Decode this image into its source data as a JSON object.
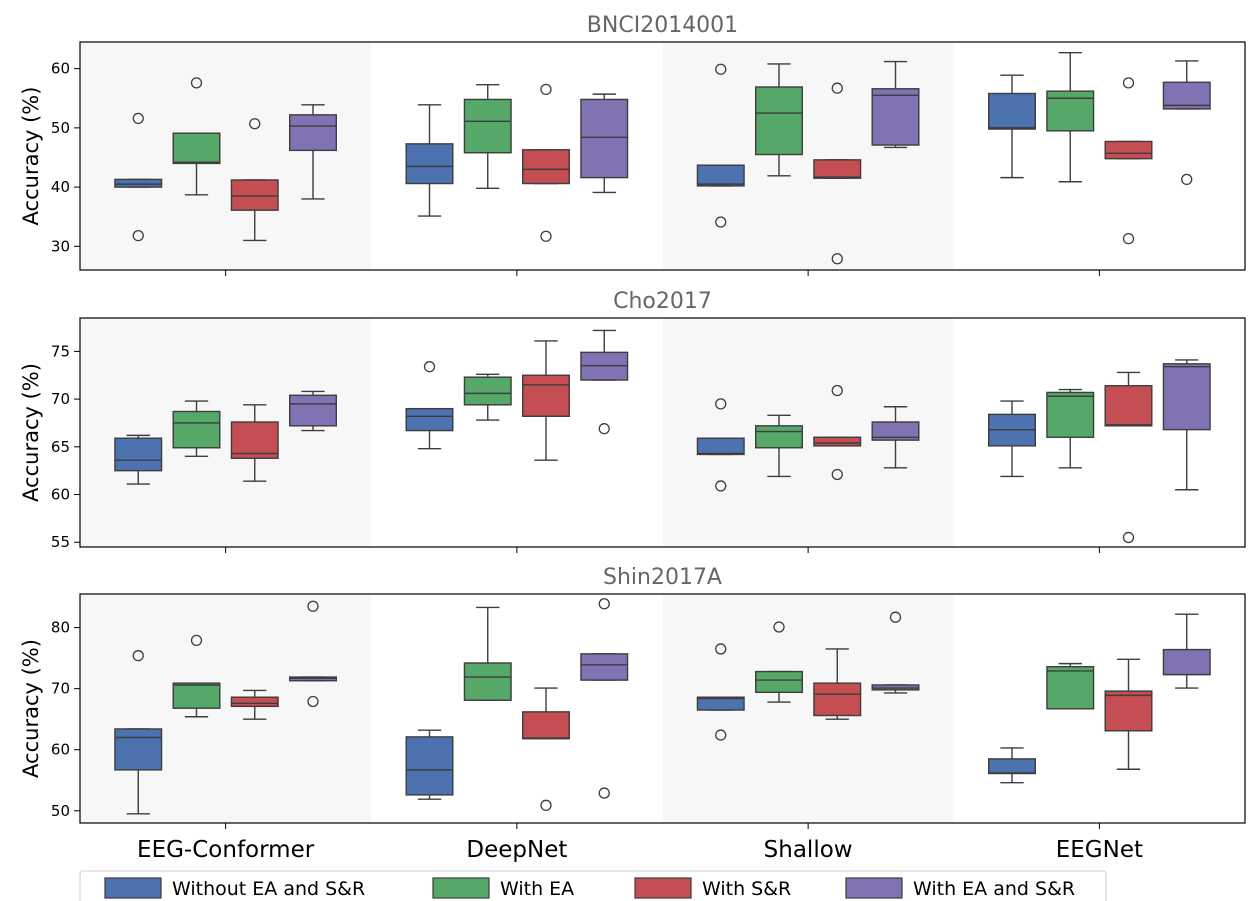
{
  "chart_data": {
    "type": "box",
    "groups": [
      "EEG-Conformer",
      "DeepNet",
      "Shallow",
      "EEGNet"
    ],
    "series": [
      {
        "name": "Without EA and S&R",
        "color": "#4c72b0"
      },
      {
        "name": "With EA",
        "color": "#55a868"
      },
      {
        "name": "With S&R",
        "color": "#c44e52"
      },
      {
        "name": "With EA and S&R",
        "color": "#8172b3"
      }
    ],
    "ylabel": "Accuracy (%)",
    "panels": [
      {
        "title": "BNCI2014001",
        "ylim": [
          26,
          64.5
        ],
        "yticks": [
          30,
          40,
          50,
          60
        ],
        "boxes": [
          [
            {
              "whislo": 40.0,
              "q1": 40.0,
              "med": 40.5,
              "q3": 41.3,
              "whishi": 41.3,
              "fliers": [
                51.6,
                31.8
              ]
            },
            {
              "whislo": 38.7,
              "q1": 44.0,
              "med": 44.2,
              "q3": 49.1,
              "whishi": 49.1,
              "fliers": [
                57.6
              ]
            },
            {
              "whislo": 31.0,
              "q1": 36.1,
              "med": 38.5,
              "q3": 41.2,
              "whishi": 41.2,
              "fliers": [
                50.7
              ]
            },
            {
              "whislo": 38.0,
              "q1": 46.2,
              "med": 50.3,
              "q3": 52.2,
              "whishi": 53.9,
              "fliers": []
            }
          ],
          [
            {
              "whislo": 35.1,
              "q1": 40.6,
              "med": 43.5,
              "q3": 47.3,
              "whishi": 53.9,
              "fliers": []
            },
            {
              "whislo": 39.8,
              "q1": 45.8,
              "med": 51.1,
              "q3": 54.8,
              "whishi": 57.3,
              "fliers": []
            },
            {
              "whislo": 40.6,
              "q1": 40.6,
              "med": 43.0,
              "q3": 46.3,
              "whishi": 46.3,
              "fliers": [
                56.5,
                31.7
              ]
            },
            {
              "whislo": 39.1,
              "q1": 41.6,
              "med": 48.4,
              "q3": 54.8,
              "whishi": 55.7,
              "fliers": []
            }
          ],
          [
            {
              "whislo": 40.2,
              "q1": 40.2,
              "med": 40.5,
              "q3": 43.7,
              "whishi": 43.7,
              "fliers": [
                59.9,
                34.1
              ]
            },
            {
              "whislo": 41.9,
              "q1": 45.5,
              "med": 52.5,
              "q3": 56.9,
              "whishi": 60.8,
              "fliers": []
            },
            {
              "whislo": 41.5,
              "q1": 41.5,
              "med": 41.7,
              "q3": 44.6,
              "whishi": 44.6,
              "fliers": [
                56.7,
                27.9
              ]
            },
            {
              "whislo": 46.7,
              "q1": 47.1,
              "med": 55.5,
              "q3": 56.6,
              "whishi": 61.2,
              "fliers": []
            }
          ],
          [
            {
              "whislo": 41.6,
              "q1": 49.8,
              "med": 50.0,
              "q3": 55.8,
              "whishi": 58.9,
              "fliers": []
            },
            {
              "whislo": 40.9,
              "q1": 49.5,
              "med": 55.0,
              "q3": 56.2,
              "whishi": 62.7,
              "fliers": []
            },
            {
              "whislo": 44.8,
              "q1": 44.8,
              "med": 45.7,
              "q3": 47.7,
              "whishi": 47.7,
              "fliers": [
                57.6,
                31.3
              ]
            },
            {
              "whislo": 53.2,
              "q1": 53.2,
              "med": 53.8,
              "q3": 57.7,
              "whishi": 61.3,
              "fliers": [
                41.3
              ]
            }
          ]
        ]
      },
      {
        "title": "Cho2017",
        "ylim": [
          54.5,
          78.5
        ],
        "yticks": [
          55,
          60,
          65,
          70,
          75
        ],
        "boxes": [
          [
            {
              "whislo": 61.1,
              "q1": 62.5,
              "med": 63.6,
              "q3": 65.9,
              "whishi": 66.2,
              "fliers": []
            },
            {
              "whislo": 64.0,
              "q1": 64.9,
              "med": 67.5,
              "q3": 68.7,
              "whishi": 69.8,
              "fliers": []
            },
            {
              "whislo": 61.4,
              "q1": 63.8,
              "med": 64.3,
              "q3": 67.6,
              "whishi": 69.4,
              "fliers": []
            },
            {
              "whislo": 66.7,
              "q1": 67.2,
              "med": 69.5,
              "q3": 70.4,
              "whishi": 70.8,
              "fliers": []
            }
          ],
          [
            {
              "whislo": 64.8,
              "q1": 66.7,
              "med": 68.2,
              "q3": 69.0,
              "whishi": 69.0,
              "fliers": [
                73.4
              ]
            },
            {
              "whislo": 67.8,
              "q1": 69.4,
              "med": 70.6,
              "q3": 72.3,
              "whishi": 72.6,
              "fliers": []
            },
            {
              "whislo": 63.6,
              "q1": 68.2,
              "med": 71.5,
              "q3": 72.5,
              "whishi": 76.1,
              "fliers": []
            },
            {
              "whislo": 72.0,
              "q1": 72.0,
              "med": 73.5,
              "q3": 74.9,
              "whishi": 77.2,
              "fliers": [
                66.9
              ]
            }
          ],
          [
            {
              "whislo": 64.2,
              "q1": 64.2,
              "med": 64.3,
              "q3": 65.9,
              "whishi": 65.9,
              "fliers": [
                69.5,
                60.9
              ]
            },
            {
              "whislo": 61.9,
              "q1": 64.9,
              "med": 66.6,
              "q3": 67.2,
              "whishi": 68.3,
              "fliers": []
            },
            {
              "whislo": 65.1,
              "q1": 65.1,
              "med": 65.4,
              "q3": 66.0,
              "whishi": 66.0,
              "fliers": [
                70.9,
                62.1
              ]
            },
            {
              "whislo": 62.8,
              "q1": 65.7,
              "med": 66.0,
              "q3": 67.6,
              "whishi": 69.2,
              "fliers": []
            }
          ],
          [
            {
              "whislo": 61.9,
              "q1": 65.1,
              "med": 66.8,
              "q3": 68.4,
              "whishi": 69.8,
              "fliers": []
            },
            {
              "whislo": 62.8,
              "q1": 66.0,
              "med": 70.3,
              "q3": 70.7,
              "whishi": 71.0,
              "fliers": []
            },
            {
              "whislo": 67.2,
              "q1": 67.2,
              "med": 67.3,
              "q3": 71.4,
              "whishi": 72.8,
              "fliers": [
                55.5
              ]
            },
            {
              "whislo": 60.5,
              "q1": 66.8,
              "med": 73.4,
              "q3": 73.7,
              "whishi": 74.1,
              "fliers": []
            }
          ]
        ]
      },
      {
        "title": "Shin2017A",
        "ylim": [
          48,
          85.5
        ],
        "yticks": [
          50,
          60,
          70,
          80
        ],
        "boxes": [
          [
            {
              "whislo": 49.5,
              "q1": 56.7,
              "med": 62.0,
              "q3": 63.4,
              "whishi": 63.4,
              "fliers": [
                75.4
              ]
            },
            {
              "whislo": 65.4,
              "q1": 66.8,
              "med": 70.6,
              "q3": 70.9,
              "whishi": 70.9,
              "fliers": [
                77.9
              ]
            },
            {
              "whislo": 65.0,
              "q1": 67.1,
              "med": 67.6,
              "q3": 68.6,
              "whishi": 69.7,
              "fliers": []
            },
            {
              "whislo": 71.3,
              "q1": 71.3,
              "med": 71.7,
              "q3": 71.9,
              "whishi": 71.9,
              "fliers": [
                83.5,
                67.9
              ]
            }
          ],
          [
            {
              "whislo": 51.9,
              "q1": 52.6,
              "med": 56.7,
              "q3": 62.1,
              "whishi": 63.2,
              "fliers": []
            },
            {
              "whislo": 68.1,
              "q1": 68.1,
              "med": 71.9,
              "q3": 74.2,
              "whishi": 83.3,
              "fliers": []
            },
            {
              "whislo": 61.8,
              "q1": 61.8,
              "med": 61.9,
              "q3": 66.2,
              "whishi": 70.1,
              "fliers": [
                50.9
              ]
            },
            {
              "whislo": 71.4,
              "q1": 71.4,
              "med": 73.9,
              "q3": 75.7,
              "whishi": 75.7,
              "fliers": [
                83.9,
                52.9
              ]
            }
          ],
          [
            {
              "whislo": 66.5,
              "q1": 66.5,
              "med": 68.4,
              "q3": 68.6,
              "whishi": 68.6,
              "fliers": [
                76.5,
                62.4
              ]
            },
            {
              "whislo": 67.8,
              "q1": 69.4,
              "med": 71.4,
              "q3": 72.8,
              "whishi": 72.8,
              "fliers": [
                80.1
              ]
            },
            {
              "whislo": 65.0,
              "q1": 65.6,
              "med": 69.1,
              "q3": 70.9,
              "whishi": 76.5,
              "fliers": []
            },
            {
              "whislo": 69.3,
              "q1": 69.8,
              "med": 70.1,
              "q3": 70.6,
              "whishi": 70.6,
              "fliers": [
                81.7
              ]
            }
          ],
          [
            {
              "whislo": 54.6,
              "q1": 56.1,
              "med": 56.2,
              "q3": 58.5,
              "whishi": 60.3,
              "fliers": []
            },
            {
              "whislo": 66.7,
              "q1": 66.7,
              "med": 72.9,
              "q3": 73.6,
              "whishi": 74.1,
              "fliers": []
            },
            {
              "whislo": 56.8,
              "q1": 63.1,
              "med": 68.9,
              "q3": 69.6,
              "whishi": 74.8,
              "fliers": []
            },
            {
              "whislo": 70.1,
              "q1": 72.3,
              "med": 72.3,
              "q3": 76.4,
              "whishi": 82.2,
              "fliers": []
            }
          ]
        ]
      }
    ],
    "legend": {
      "placement": "bottom"
    }
  }
}
